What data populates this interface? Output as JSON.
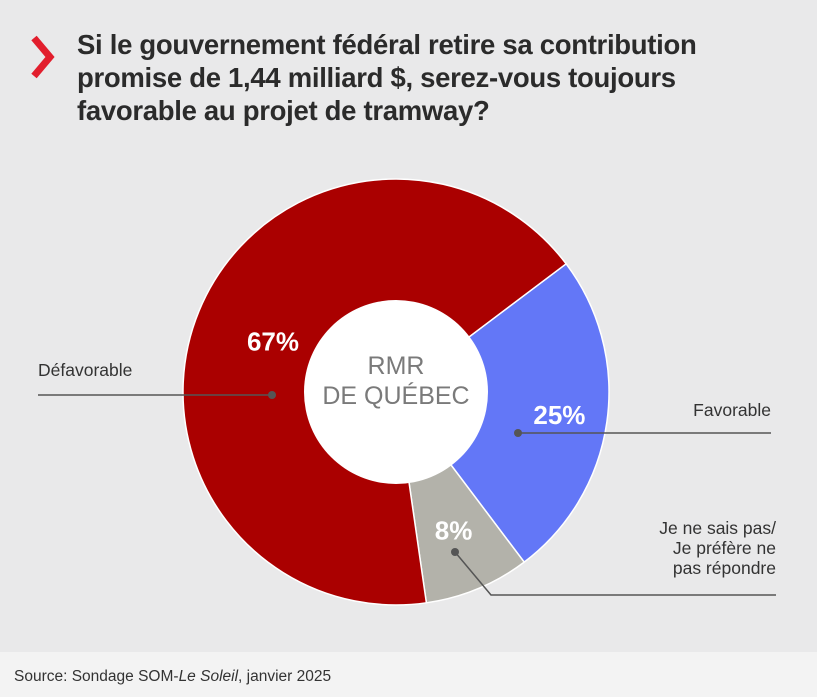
{
  "title_lines": [
    "Si le gouvernement fédéral retire sa contribution",
    "promise de 1,44 milliard $, serez-vous toujours",
    "favorable au projet de tramway?"
  ],
  "center_label": [
    "RMR",
    "DE QUÉBEC"
  ],
  "colors": {
    "accent": "#e21e2d",
    "defavorable": "#aa0000",
    "favorable": "#6377f7",
    "nsp": "#b3b2aa"
  },
  "source": {
    "prefix": "Source: Sondage SOM-",
    "publication": "Le Soleil",
    "suffix": ", janvier 2025"
  },
  "chart_data": {
    "type": "pie",
    "series": [
      {
        "label": "Favorable",
        "label_lines": [
          "Favorable"
        ],
        "value": 25,
        "value_label": "25%",
        "color": "#6377f7"
      },
      {
        "label": "Je ne sais pas/ Je préfère ne pas répondre",
        "label_lines": [
          "Je ne sais pas/",
          "Je préfère ne",
          "pas répondre"
        ],
        "value": 8,
        "value_label": "8%",
        "color": "#b3b2aa"
      },
      {
        "label": "Défavorable",
        "label_lines": [
          "Défavorable"
        ],
        "value": 67,
        "value_label": "67%",
        "color": "#aa0000"
      }
    ]
  }
}
